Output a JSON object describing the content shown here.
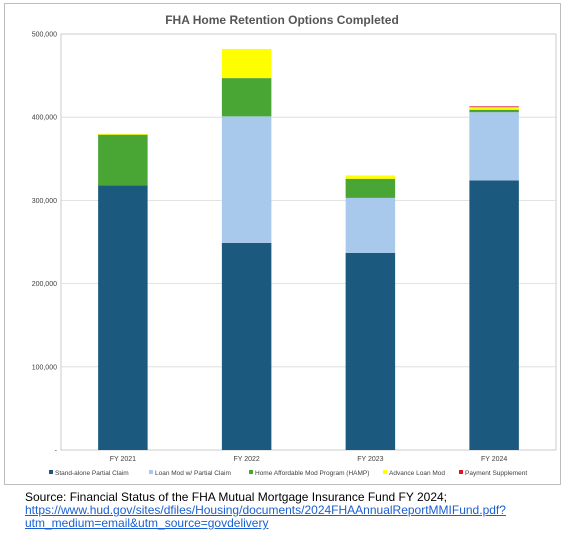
{
  "chart_data": {
    "type": "bar",
    "stacked": true,
    "title": "FHA Home Retention Options Completed",
    "categories": [
      "FY 2021",
      "FY 2022",
      "FY 2023",
      "FY 2024"
    ],
    "series": [
      {
        "name": "Stand-alone Partial Claim",
        "color": "#1b5a7e",
        "values": [
          318000,
          249000,
          237000,
          324000
        ]
      },
      {
        "name": "Loan Mod w/ Partial Claim",
        "color": "#a9c9ec",
        "values": [
          0,
          152000,
          66000,
          82000
        ]
      },
      {
        "name": "Home Affordable Mod Program (HAMP)",
        "color": "#4aa634",
        "values": [
          61000,
          46000,
          23000,
          3000
        ]
      },
      {
        "name": "Advance Loan Mod",
        "color": "#ffff00",
        "values": [
          1000,
          35000,
          4000,
          3000
        ]
      },
      {
        "name": "Payment Supplement",
        "color": "#e0142b",
        "values": [
          0,
          0,
          0,
          1000
        ]
      }
    ],
    "ylim": [
      0,
      500000
    ],
    "yticks": [
      0,
      100000,
      200000,
      300000,
      400000,
      500000
    ],
    "ytick_labels": [
      "-",
      "100,000",
      "200,000",
      "300,000",
      "400,000",
      "500,000"
    ],
    "grid": true,
    "legend_position": "bottom"
  },
  "source": {
    "text": "Source: Financial Status of the FHA Mutual Mortgage Insurance Fund FY 2024;",
    "link_line1": "https://www.hud.gov/sites/dfiles/Housing/documents/2024FHAAnnualReportMMIFund.pdf?",
    "link_line2": "utm_medium=email&utm_source=govdelivery"
  }
}
